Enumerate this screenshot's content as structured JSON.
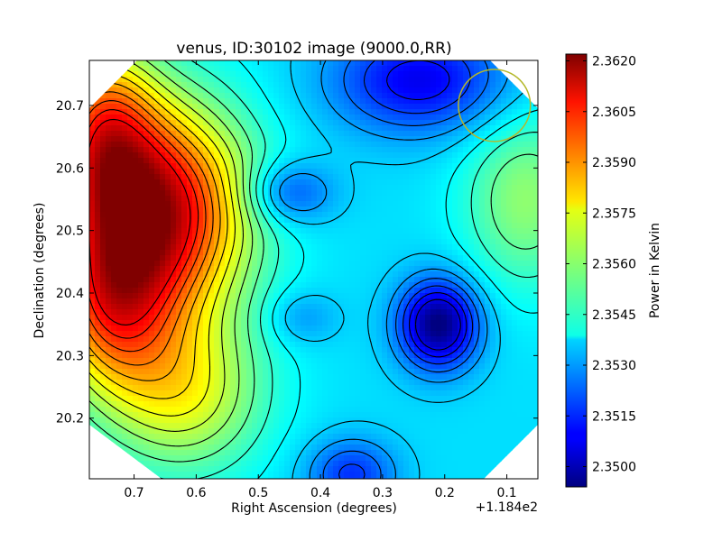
{
  "chart_data": {
    "type": "heatmap",
    "title": "venus, ID:30102 image (9000.0,RR)",
    "xlabel": "Right Ascension (degrees)",
    "ylabel": "Declination (degrees)",
    "x_offset_label": "+1.184e2",
    "xlim": [
      0.772,
      0.05
    ],
    "ylim": [
      20.103,
      20.772
    ],
    "x_ticks": [
      0.7,
      0.6,
      0.5,
      0.4,
      0.3,
      0.2,
      0.1
    ],
    "x_tick_labels": [
      "0.7",
      "0.6",
      "0.5",
      "0.4",
      "0.3",
      "0.2",
      "0.1"
    ],
    "y_ticks": [
      20.2,
      20.3,
      20.4,
      20.5,
      20.6,
      20.7
    ],
    "y_tick_labels": [
      "20.2",
      "20.3",
      "20.4",
      "20.5",
      "20.6",
      "20.7"
    ],
    "colorbar": {
      "label": "Power in Kelvin",
      "range": [
        2.3494,
        2.3622
      ],
      "ticks": [
        2.35,
        2.3515,
        2.353,
        2.3545,
        2.356,
        2.3575,
        2.359,
        2.3605,
        2.362
      ],
      "tick_labels": [
        "2.3500",
        "2.3515",
        "2.3530",
        "2.3545",
        "2.3560",
        "2.3575",
        "2.3590",
        "2.3605",
        "2.3620"
      ],
      "colormap": "jet"
    },
    "field": {
      "baseline": 2.3538,
      "features": [
        {
          "name": "north-west high",
          "ra": 0.66,
          "dec": 20.53,
          "amplitude": 0.0075,
          "sigma_ra": 0.1,
          "sigma_dec": 0.12
        },
        {
          "name": "north-west ridge",
          "ra": 0.75,
          "dec": 20.66,
          "amplitude": 0.0045,
          "sigma_ra": 0.06,
          "sigma_dec": 0.1
        },
        {
          "name": "west high",
          "ra": 0.74,
          "dec": 20.38,
          "amplitude": 0.0045,
          "sigma_ra": 0.07,
          "sigma_dec": 0.1
        },
        {
          "name": "south-west warm",
          "ra": 0.62,
          "dec": 20.24,
          "amplitude": 0.0032,
          "sigma_ra": 0.09,
          "sigma_dec": 0.09
        },
        {
          "name": "central low",
          "ra": 0.21,
          "dec": 20.35,
          "amplitude": -0.0045,
          "sigma_ra": 0.045,
          "sigma_dec": 0.05
        },
        {
          "name": "north low",
          "ra": 0.24,
          "dec": 20.74,
          "amplitude": -0.003,
          "sigma_ra": 0.1,
          "sigma_dec": 0.06
        },
        {
          "name": "north-central low",
          "ra": 0.45,
          "dec": 20.56,
          "amplitude": -0.002,
          "sigma_ra": 0.05,
          "sigma_dec": 0.035
        },
        {
          "name": "small low",
          "ra": 0.43,
          "dec": 20.36,
          "amplitude": -0.001,
          "sigma_ra": 0.04,
          "sigma_dec": 0.03
        },
        {
          "name": "south low",
          "ra": 0.35,
          "dec": 20.11,
          "amplitude": -0.0022,
          "sigma_ra": 0.05,
          "sigma_dec": 0.04
        },
        {
          "name": "east warm",
          "ra": 0.07,
          "dec": 20.55,
          "amplitude": 0.0022,
          "sigma_ra": 0.07,
          "sigma_dec": 0.1
        }
      ],
      "contour_levels": [
        2.3506,
        2.3512,
        2.3518,
        2.3524,
        2.353,
        2.3536,
        2.3542,
        2.3548,
        2.3554,
        2.356,
        2.3566,
        2.3572,
        2.3578,
        2.3584,
        2.359,
        2.3596,
        2.3602,
        2.3608
      ]
    },
    "beam_circle": {
      "ra": 0.12,
      "dec": 20.7,
      "radius_deg": 0.058,
      "color": "#b5b82a"
    }
  }
}
